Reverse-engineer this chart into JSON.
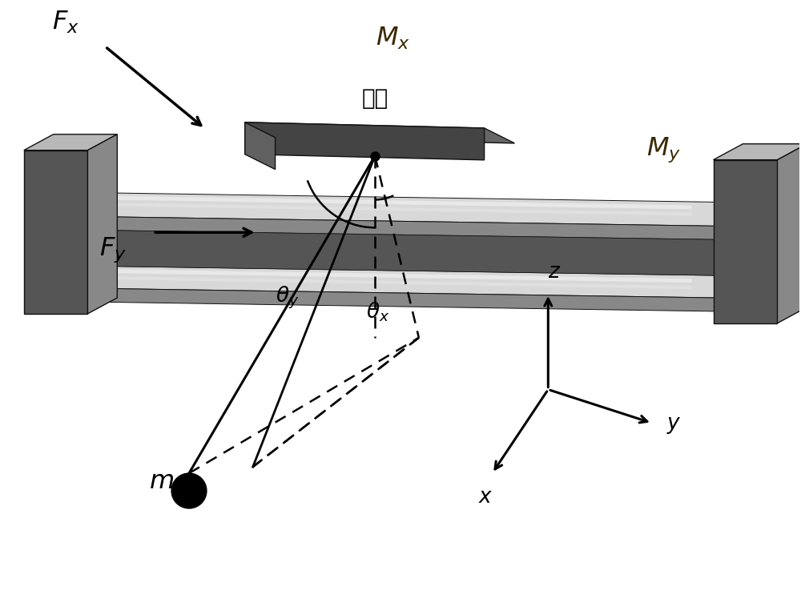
{
  "bg_color": "#ffffff",
  "c_top": "#b8b8b8",
  "c_side": "#888888",
  "c_dark": "#555555",
  "c_vlight": "#d8d8d8",
  "c_edge": "#111111",
  "c_trolley_top": "#666666",
  "c_trolley_front": "#444444",
  "c_trolley_side": "#555555"
}
